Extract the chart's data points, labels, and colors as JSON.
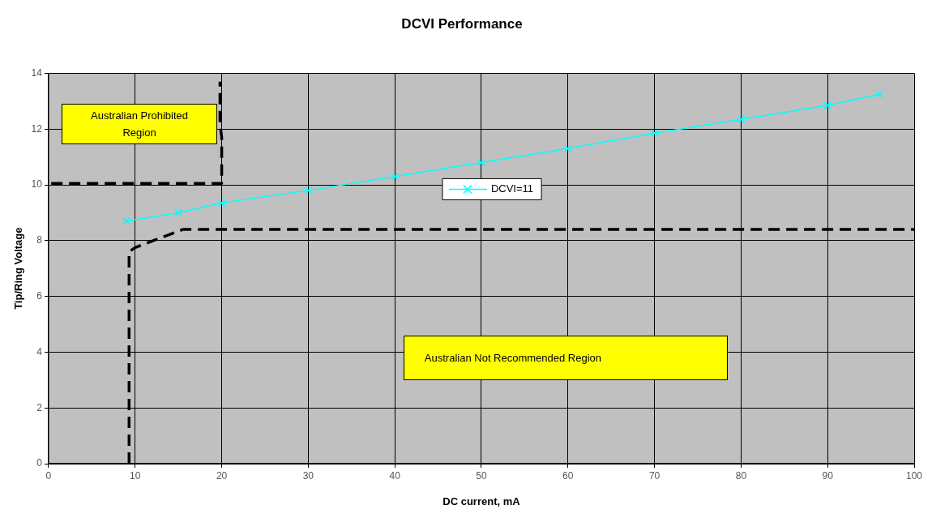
{
  "chart_data": {
    "type": "line",
    "title": "DCVI Performance",
    "xlabel": "DC current, mA",
    "ylabel": "Tip/Ring Voltage",
    "xlim": [
      0,
      100
    ],
    "xticks": [
      0,
      10,
      20,
      30,
      40,
      50,
      60,
      70,
      80,
      90,
      100
    ],
    "ylim": [
      0,
      14
    ],
    "yticks": [
      0,
      2,
      4,
      6,
      8,
      10,
      12,
      14
    ],
    "grid": true,
    "legend": "top",
    "series": [
      {
        "name": "DCVI=11",
        "color": "#00ffff",
        "marker": "cross",
        "line_style": "solid",
        "x": [
          9,
          15,
          20,
          30,
          40,
          50,
          60,
          70,
          80,
          90,
          96
        ],
        "values": [
          8.7,
          9.0,
          9.35,
          9.8,
          10.3,
          10.8,
          11.3,
          11.85,
          12.35,
          12.85,
          13.25
        ]
      },
      {
        "color": "#000000",
        "marker": "none",
        "line_style": "dashed",
        "x": [
          0.3,
          20,
          20,
          19.8,
          19.8
        ],
        "values": [
          10.05,
          10.05,
          11.7,
          12.2,
          13.7
        ]
      },
      {
        "color": "#000000",
        "marker": "none",
        "line_style": "dashed",
        "x": [
          9.3,
          9.3,
          10,
          15.5,
          100
        ],
        "values": [
          0,
          7.6,
          7.75,
          8.4,
          8.4
        ]
      }
    ],
    "annotations": [
      "Australian Prohibited Region",
      "Australian Not Recommended Region"
    ]
  }
}
